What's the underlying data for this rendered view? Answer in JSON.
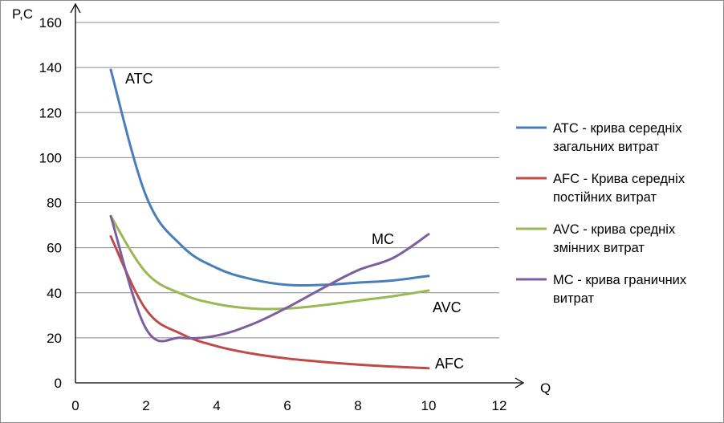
{
  "chart_data": {
    "type": "line",
    "title": "",
    "xlabel": "Q",
    "ylabel": "P,C",
    "xlim": [
      0,
      12
    ],
    "ylim": [
      0,
      160
    ],
    "x_ticks": [
      "0",
      "2",
      "4",
      "6",
      "8",
      "10",
      "12"
    ],
    "y_ticks": [
      "0",
      "20",
      "40",
      "60",
      "80",
      "100",
      "120",
      "140",
      "160"
    ],
    "grid": "horizontal",
    "legend_position": "right",
    "x": [
      1,
      2,
      3,
      4,
      5,
      6,
      7,
      8,
      9,
      10
    ],
    "series": [
      {
        "key": "atc",
        "legend": [
          "ATC - крива середніх",
          "загальних витрат"
        ],
        "label": "ATC",
        "color": "#4a7ebb",
        "values": [
          139,
          83,
          61,
          51,
          46,
          43.5,
          43.5,
          44.5,
          45.5,
          47.5
        ]
      },
      {
        "key": "afc",
        "legend": [
          "AFC - Крива середніх",
          "постійних витрат"
        ],
        "label": "AFC",
        "color": "#be4b48",
        "values": [
          65,
          32.5,
          21.7,
          16.3,
          13,
          10.8,
          9.3,
          8.1,
          7.2,
          6.5
        ]
      },
      {
        "key": "avc",
        "legend": [
          "AVC - крива средніх",
          "змінних витрат"
        ],
        "label": "AVC",
        "color": "#98b954",
        "values": [
          74,
          49,
          39.5,
          35,
          33,
          33,
          34.5,
          36.5,
          38.5,
          41
        ]
      },
      {
        "key": "mc",
        "legend": [
          "MC - крива граничних",
          "витрат"
        ],
        "label": "MC",
        "color": "#7d5fa0",
        "values": [
          74,
          24,
          20,
          21,
          26,
          33.5,
          42,
          50,
          55.5,
          66
        ]
      }
    ]
  }
}
